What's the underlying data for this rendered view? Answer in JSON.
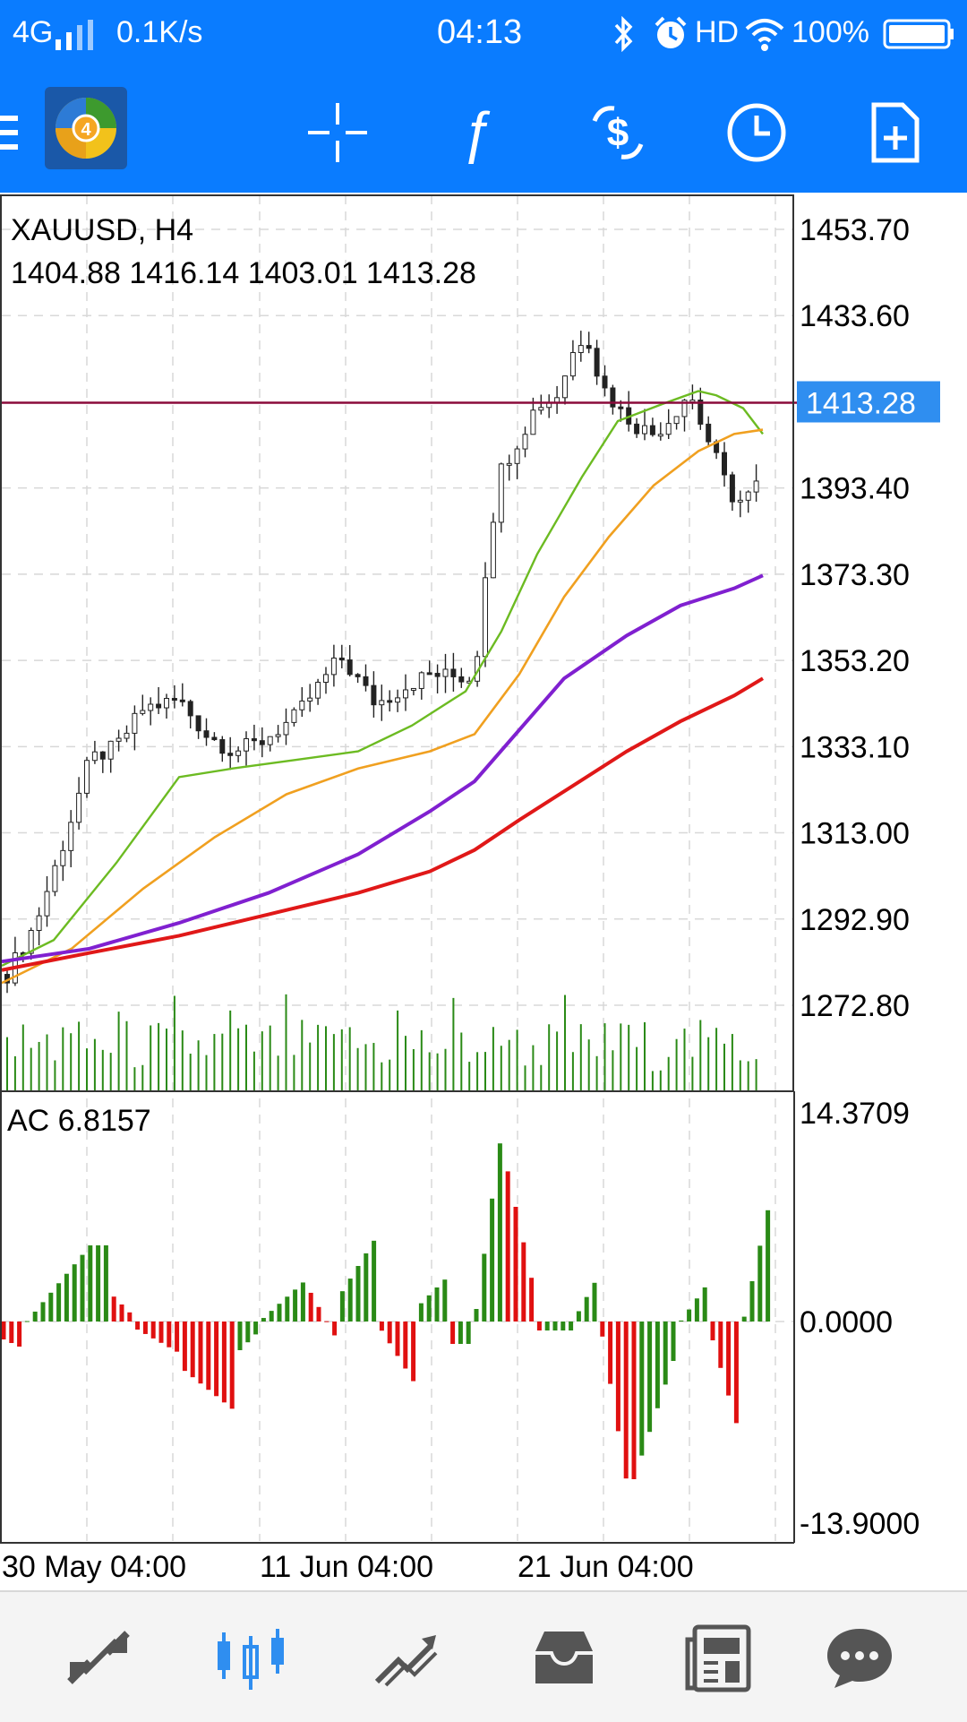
{
  "status_bar": {
    "network": "4G",
    "speed": "0.1K/s",
    "time": "04:13",
    "hd": "HD",
    "battery": "100%",
    "icons": [
      "signal-icon",
      "bluetooth-icon",
      "alarm-icon",
      "wifi-icon",
      "battery-icon"
    ]
  },
  "toolbar": {
    "icons": [
      "menu-icon",
      "metatrader-logo",
      "crosshair-icon",
      "indicators-icon",
      "symbol-icon",
      "timeframe-icon",
      "new-order-icon"
    ],
    "logo_badge": "4"
  },
  "chart": {
    "symbol_label": "XAUUSD, H4",
    "ohlc": "1404.88 1416.14 1403.01 1413.28",
    "current_price": "1413.28",
    "price_ticks": [
      "1453.70",
      "1433.60",
      "1393.40",
      "1373.30",
      "1353.20",
      "1333.10",
      "1313.00",
      "1292.90",
      "1272.80"
    ],
    "indicator_label": "AC 6.8157",
    "indicator_ticks": [
      "14.3709",
      "0.0000",
      "-13.9000"
    ],
    "time_labels": [
      "30 May 04:00",
      "11 Jun 04:00",
      "21 Jun 04:00"
    ],
    "colors": {
      "up": "#2a8a16",
      "down": "#e01010",
      "ma_green": "#6cbb22",
      "ma_orange": "#f0a020",
      "ma_purple": "#8020d0",
      "ma_red": "#e01818",
      "price_line": "#8a0a3a",
      "price_tag": "#2f8ef0"
    }
  },
  "bottom_nav": {
    "items": [
      "quotes-icon",
      "chart-icon",
      "trade-icon",
      "history-icon",
      "news-icon",
      "messages-icon"
    ],
    "active": "chart-icon"
  }
}
